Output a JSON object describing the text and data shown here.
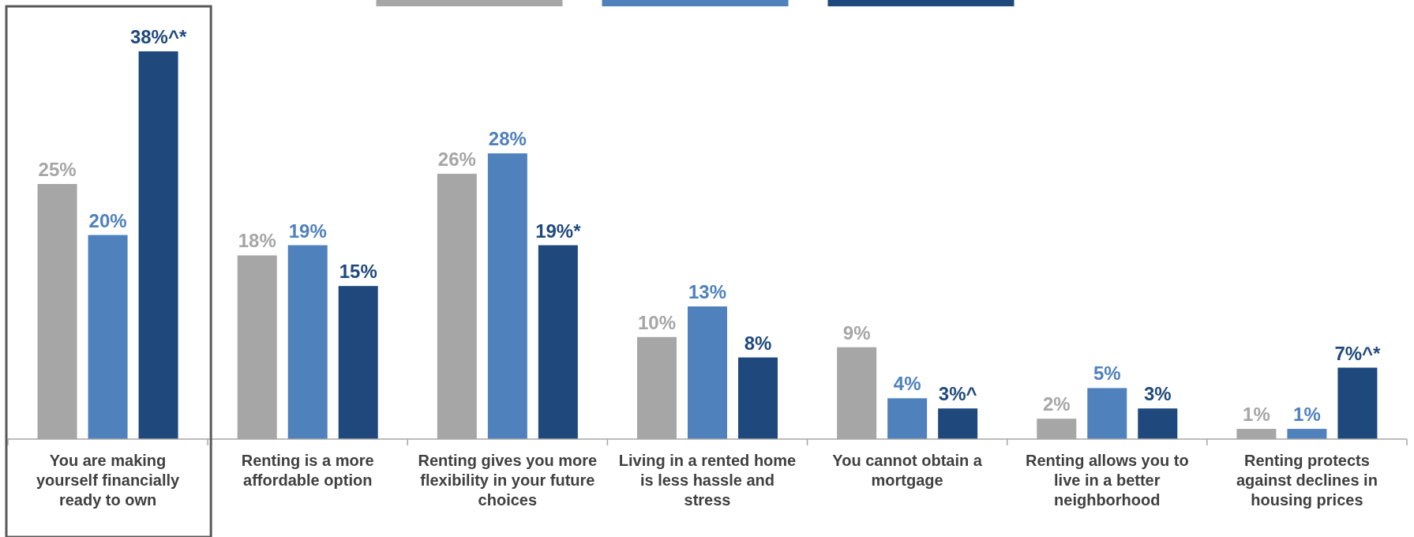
{
  "chart_data": {
    "type": "bar",
    "categories": [
      "You are making yourself financially ready to own",
      "Renting is a more affordable option",
      "Renting gives you more flexibility in your future choices",
      "Living in a rented home is less hassle and stress",
      "You cannot obtain a mortgage",
      "Renting allows you to live in a better neighborhood",
      "Renting protects against declines in housing prices"
    ],
    "series": [
      {
        "color": "#a6a6a6",
        "values": [
          25,
          18,
          26,
          10,
          9,
          2,
          1
        ]
      },
      {
        "color": "#4f81bd",
        "values": [
          20,
          19,
          28,
          13,
          4,
          5,
          1
        ]
      },
      {
        "color": "#1f497d",
        "values": [
          38,
          15,
          19,
          8,
          3,
          3,
          7
        ],
        "value_labels": [
          "38%^*",
          "15%",
          "19%*",
          "8%",
          "3%^",
          "3%",
          "7%^*"
        ]
      }
    ],
    "value_labels": [
      [
        "25%",
        "18%",
        "26%",
        "10%",
        "9%",
        "2%",
        "1%"
      ],
      [
        "20%",
        "19%",
        "28%",
        "13%",
        "4%",
        "5%",
        "1%"
      ],
      null
    ]
  }
}
